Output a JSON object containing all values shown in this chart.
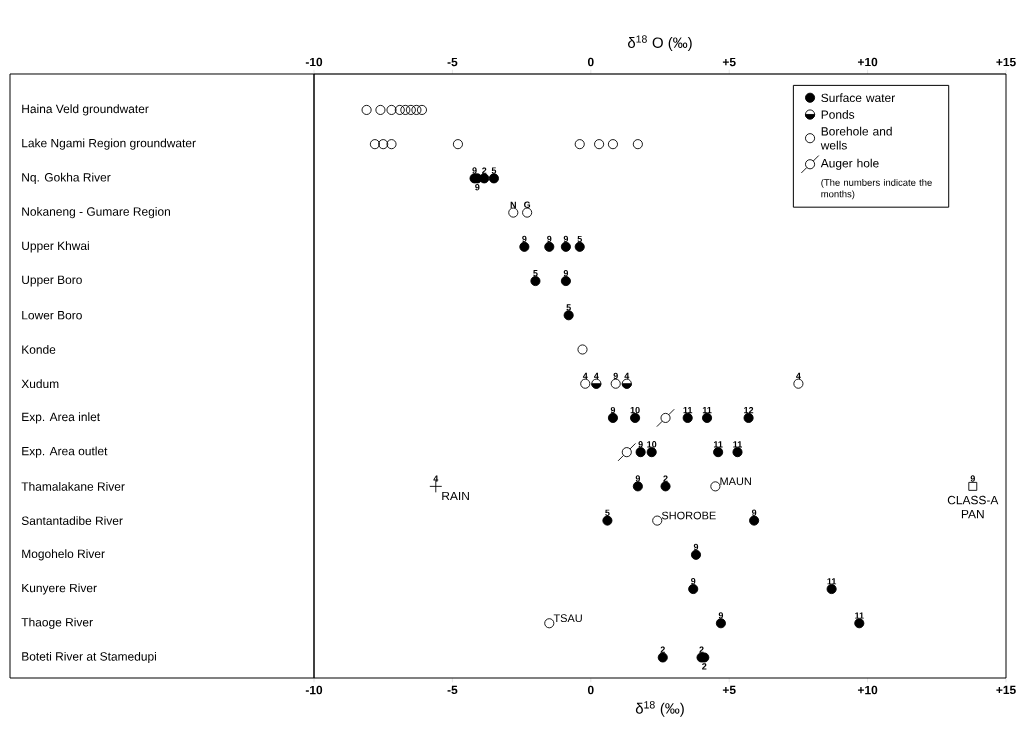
{
  "chart_data": {
    "type": "scatter",
    "orientation": "horizontal",
    "categories": [
      "Haina Veld groundwater",
      "Lake Ngami Region groundwater",
      "Nq. Gokha River",
      "Nokaneng - Gumare Region",
      "Upper Khwai",
      "Upper Boro",
      "Lower Boro",
      "Konde",
      "Xudum",
      "Exp. Area inlet",
      "Exp. Area outlet",
      "Thamalakane River",
      "Santantadibe River",
      "Mogohelo River",
      "Kunyere River",
      "Thaoge River",
      "Boteti River at Stamedupi"
    ],
    "xlabel": "δ$^{18}$ (‰)",
    "x2label": "δ$^{18}$ O (‰)",
    "xlim": [
      -10,
      15
    ],
    "xticks": [
      -10,
      -5,
      0,
      {
        "value": 5,
        "label": "+5"
      },
      {
        "value": 10,
        "label": "+10"
      },
      {
        "value": 15,
        "label": "+15"
      }
    ],
    "x2lim": [
      -10,
      15
    ],
    "x2ticks": [
      -10,
      -5,
      0,
      {
        "value": 5,
        "label": "+5"
      },
      {
        "value": 10,
        "label": "+10"
      },
      {
        "value": 15,
        "label": "+15"
      }
    ],
    "legend": "top right",
    "series": [
      {
        "name": "Surface water",
        "color": "#000000",
        "marker": "circle",
        "x": [
          "Nq. Gokha River",
          "Nq. Gokha River",
          "Nq. Gokha River",
          "Nq. Gokha River",
          "Upper Khwai",
          "Upper Khwai",
          "Upper Khwai",
          "Upper Khwai",
          "Upper Boro",
          "Upper Boro",
          "Lower Boro",
          "Exp. Area inlet",
          "Exp. Area inlet",
          "Exp. Area inlet",
          "Exp. Area inlet",
          "Exp. Area inlet",
          "Exp. Area outlet",
          "Exp. Area outlet",
          "Exp. Area outlet",
          "Exp. Area outlet",
          "Thamalakane River",
          "Thamalakane River",
          "Santantadibe River",
          "Santantadibe River",
          "Mogohelo River",
          "Kunyere River",
          "Kunyere River",
          "Thaoge River",
          "Thaoge River",
          "Boteti River at Stamedupi",
          "Boteti River at Stamedupi",
          "Boteti River at Stamedupi"
        ],
        "values": [
          -4.2,
          -3.85,
          -3.5,
          -4.1,
          -2.4,
          -1.5,
          -0.9,
          -0.4,
          -2.0,
          -0.9,
          -0.8,
          0.8,
          1.6,
          3.5,
          4.2,
          5.7,
          1.8,
          2.2,
          4.6,
          5.3,
          1.7,
          2.7,
          0.6,
          5.9,
          3.8,
          3.7,
          8.7,
          4.7,
          9.7,
          2.6,
          4.0,
          4.1
        ]
      },
      {
        "name": "Ponds",
        "color": "#000000",
        "marker": "circle",
        "x": [
          "Xudum",
          "Xudum"
        ],
        "values": [
          0.2,
          1.3
        ]
      },
      {
        "name": "Borehole and wells",
        "color": "#000000",
        "marker": "circle",
        "x": [
          "Haina Veld groundwater",
          "Haina Veld groundwater",
          "Haina Veld groundwater",
          "Haina Veld groundwater",
          "Haina Veld groundwater",
          "Haina Veld groundwater",
          "Haina Veld groundwater",
          "Haina Veld groundwater",
          "Lake Ngami Region groundwater",
          "Lake Ngami Region groundwater",
          "Lake Ngami Region groundwater",
          "Lake Ngami Region groundwater",
          "Lake Ngami Region groundwater",
          "Lake Ngami Region groundwater",
          "Lake Ngami Region groundwater",
          "Lake Ngami Region groundwater",
          "Nokaneng - Gumare Region",
          "Nokaneng - Gumare Region",
          "Konde",
          "Xudum",
          "Xudum",
          "Xudum",
          "Thamalakane River",
          "Santantadibe River",
          "Thaoge River"
        ],
        "values": [
          -8.1,
          -7.6,
          -7.2,
          -6.9,
          -6.7,
          -6.5,
          -6.3,
          -6.1,
          -7.8,
          -7.5,
          -7.2,
          -4.8,
          -0.4,
          0.3,
          0.8,
          1.7,
          -2.8,
          -2.3,
          -0.3,
          -0.2,
          0.9,
          7.5,
          4.5,
          2.4,
          -1.5
        ]
      },
      {
        "name": "Auger hole",
        "color": "#000000",
        "marker": "circle",
        "x": [
          "Exp. Area inlet",
          "Exp. Area outlet"
        ],
        "values": [
          2.7,
          1.3
        ]
      },
      {
        "name": "RAIN",
        "color": "#000000",
        "marker": "cross",
        "x": [
          "Thamalakane River"
        ],
        "values": [
          -5.6
        ]
      },
      {
        "name": "CLASS-A PAN",
        "color": "#000000",
        "marker": "square",
        "x": [
          "Thamalakane River"
        ],
        "values": [
          13.8
        ]
      }
    ],
    "annotations": [
      "(The numbers indicate the months)",
      {
        "text": "MAUN",
        "x": 4.5,
        "y": "Thamalakane River"
      },
      {
        "text": "SHOROBE",
        "x": 2.4,
        "y": "Santantadibe River"
      },
      {
        "text": "TSAU",
        "x": -1.5,
        "y": "Thaoge River"
      },
      {
        "text": "9",
        "x": -4.2,
        "y": "Nq. Gokha River"
      },
      {
        "text": "2",
        "x": -3.85,
        "y": "Nq. Gokha River"
      },
      {
        "text": "5",
        "x": -3.5,
        "y": "Nq. Gokha River"
      },
      {
        "text": "9",
        "x": -4.1,
        "y": "Nq. Gokha River"
      },
      {
        "text": "N",
        "x": -2.8,
        "y": "Nokaneng - Gumare Region"
      },
      {
        "text": "G",
        "x": -2.3,
        "y": "Nokaneng - Gumare Region"
      },
      {
        "text": "9",
        "x": -2.4,
        "y": "Upper Khwai"
      },
      {
        "text": "9",
        "x": -1.5,
        "y": "Upper Khwai"
      },
      {
        "text": "9",
        "x": -0.9,
        "y": "Upper Khwai"
      },
      {
        "text": "5",
        "x": -0.4,
        "y": "Upper Khwai"
      },
      {
        "text": "5",
        "x": -2.0,
        "y": "Upper Boro"
      },
      {
        "text": "9",
        "x": -0.9,
        "y": "Upper Boro"
      },
      {
        "text": "5",
        "x": -0.8,
        "y": "Lower Boro"
      },
      {
        "text": "4",
        "x": -0.2,
        "y": "Xudum"
      },
      {
        "text": "4",
        "x": 0.2,
        "y": "Xudum"
      },
      {
        "text": "9",
        "x": 0.9,
        "y": "Xudum"
      },
      {
        "text": "4",
        "x": 1.3,
        "y": "Xudum"
      },
      {
        "text": "4",
        "x": 7.5,
        "y": "Xudum"
      },
      {
        "text": "9",
        "x": 0.8,
        "y": "Exp. Area inlet"
      },
      {
        "text": "10",
        "x": 1.6,
        "y": "Exp. Area inlet"
      },
      {
        "text": "11",
        "x": 3.5,
        "y": "Exp. Area inlet"
      },
      {
        "text": "11",
        "x": 4.2,
        "y": "Exp. Area inlet"
      },
      {
        "text": "12",
        "x": 5.7,
        "y": "Exp. Area inlet"
      },
      {
        "text": "9",
        "x": 1.8,
        "y": "Exp. Area outlet"
      },
      {
        "text": "10",
        "x": 2.2,
        "y": "Exp. Area outlet"
      },
      {
        "text": "11",
        "x": 4.6,
        "y": "Exp. Area outlet"
      },
      {
        "text": "11",
        "x": 5.3,
        "y": "Exp. Area outlet"
      },
      {
        "text": "4",
        "x": -5.6,
        "y": "Thamalakane River"
      },
      {
        "text": "9",
        "x": 1.7,
        "y": "Thamalakane River"
      },
      {
        "text": "2",
        "x": 2.7,
        "y": "Thamalakane River"
      },
      {
        "text": "9",
        "x": 13.8,
        "y": "Thamalakane River"
      },
      {
        "text": "5",
        "x": 0.6,
        "y": "Santantadibe River"
      },
      {
        "text": "9",
        "x": 5.9,
        "y": "Santantadibe River"
      },
      {
        "text": "9",
        "x": 3.8,
        "y": "Mogohelo River"
      },
      {
        "text": "9",
        "x": 3.7,
        "y": "Kunyere River"
      },
      {
        "text": "11",
        "x": 8.7,
        "y": "Kunyere River"
      },
      {
        "text": "9",
        "x": 4.7,
        "y": "Thaoge River"
      },
      {
        "text": "11",
        "x": 9.7,
        "y": "Thaoge River"
      },
      {
        "text": "2",
        "x": 2.6,
        "y": "Boteti River at Stamedupi"
      },
      {
        "text": "2",
        "x": 4.0,
        "y": "Boteti River at Stamedupi"
      },
      {
        "text": "2",
        "x": 4.1,
        "y": "Boteti River at Stamedupi"
      }
    ]
  }
}
